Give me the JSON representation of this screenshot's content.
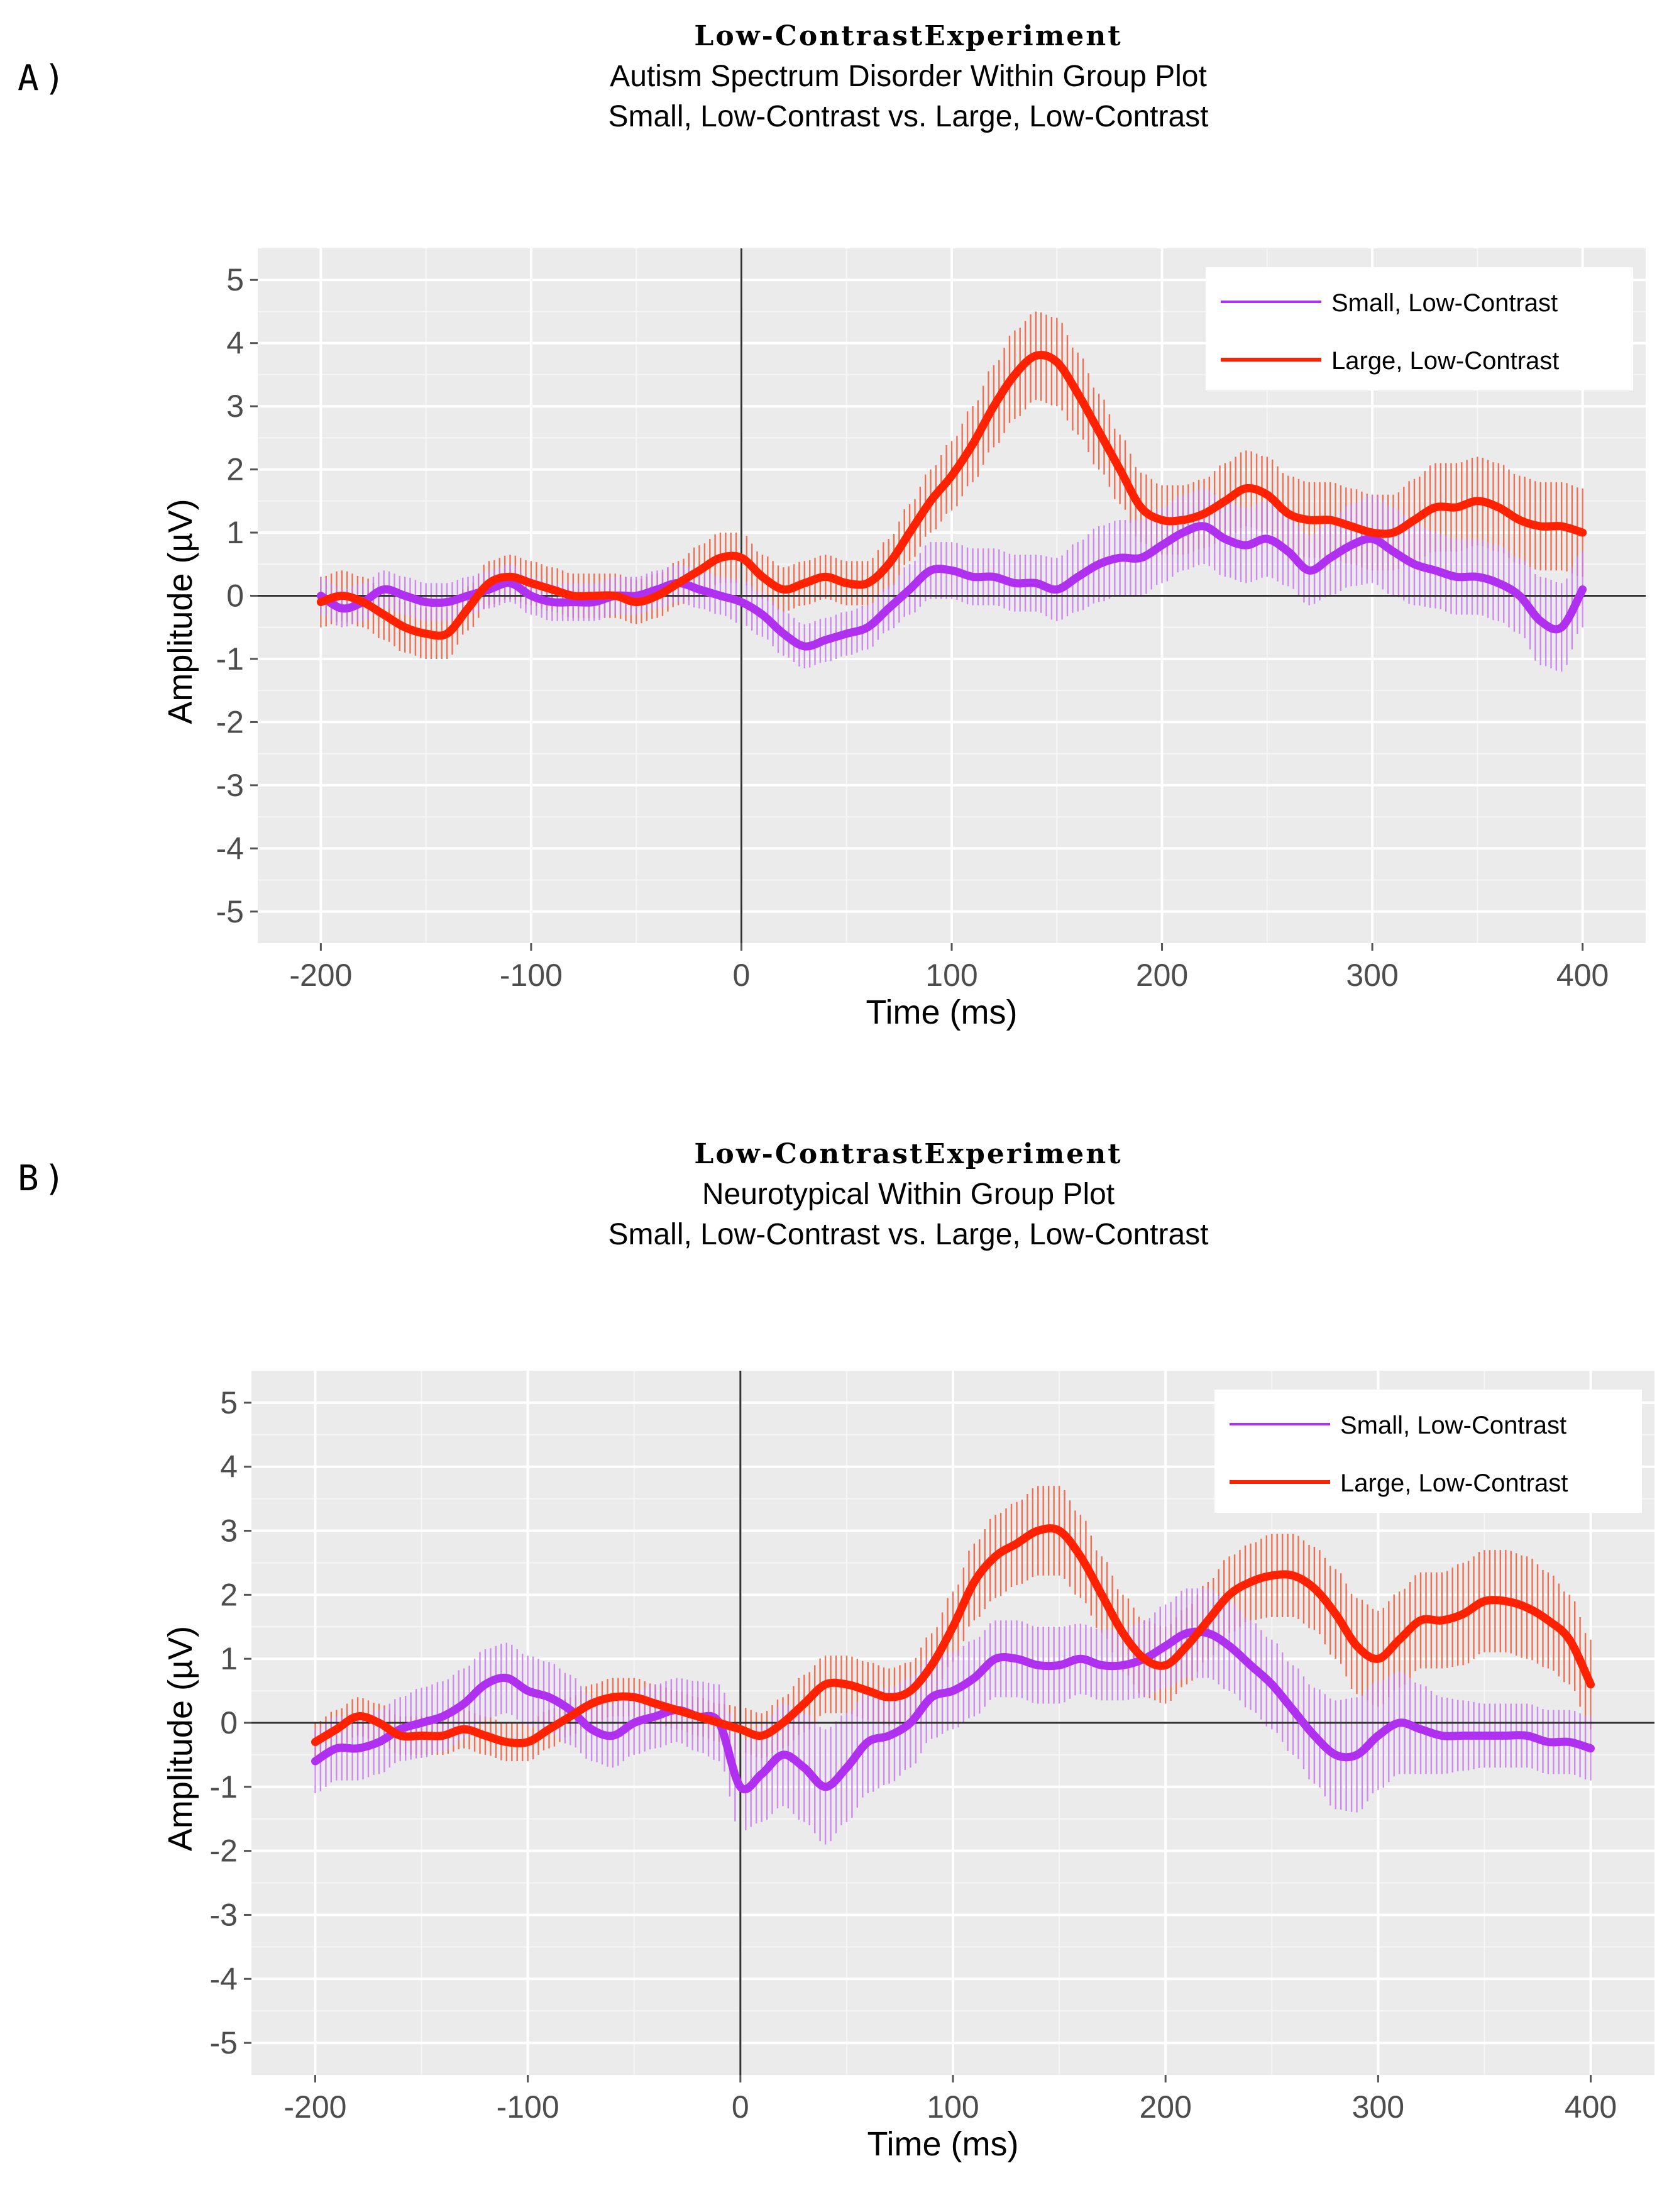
{
  "panels": [
    {
      "label": "A)",
      "title": "Low-ContrastExperiment",
      "subtitle1": "Autism Spectrum Disorder Within Group Plot",
      "subtitle2": "Small, Low-Contrast vs. Large, Low-Contrast"
    },
    {
      "label": "B)",
      "title": "Low-ContrastExperiment",
      "subtitle1": "Neurotypical Within Group Plot",
      "subtitle2": "Small, Low-Contrast vs. Large, Low-Contrast"
    }
  ],
  "colors": {
    "small": "#b030f0",
    "small_band": "#c878f0",
    "large": "#ff2200",
    "large_band": "#f05a38",
    "panel_bg": "#ebebeb",
    "grid": "#ffffff"
  },
  "chart_data": [
    {
      "type": "line",
      "title": "Low-ContrastExperiment",
      "subtitle": "Autism Spectrum Disorder Within Group Plot / Small, Low-Contrast vs. Large, Low-Contrast",
      "xlabel": "Time (ms)",
      "ylabel": "Amplitude (µV)",
      "xlim": [
        -230,
        430
      ],
      "ylim": [
        -5.5,
        5.5
      ],
      "xticks": [
        -200,
        -100,
        0,
        100,
        200,
        300,
        400
      ],
      "yticks": [
        5,
        4,
        3,
        2,
        1,
        0,
        -1,
        -2,
        -3,
        -4,
        -5
      ],
      "legend_position": "top-right",
      "series": [
        {
          "name": "Small, Low-Contrast",
          "x": [
            -200,
            -190,
            -180,
            -170,
            -160,
            -150,
            -140,
            -130,
            -120,
            -110,
            -100,
            -90,
            -80,
            -70,
            -60,
            -50,
            -40,
            -30,
            -20,
            -10,
            0,
            10,
            20,
            30,
            40,
            50,
            60,
            70,
            80,
            90,
            100,
            110,
            120,
            130,
            140,
            150,
            160,
            170,
            180,
            190,
            200,
            210,
            220,
            230,
            240,
            250,
            260,
            270,
            280,
            290,
            300,
            310,
            320,
            330,
            340,
            350,
            360,
            370,
            380,
            390,
            400
          ],
          "values": [
            0.0,
            -0.2,
            -0.1,
            0.1,
            0.0,
            -0.1,
            -0.1,
            0.0,
            0.1,
            0.2,
            0.0,
            -0.1,
            -0.1,
            -0.1,
            0.0,
            0.0,
            0.1,
            0.2,
            0.1,
            0.0,
            -0.1,
            -0.3,
            -0.6,
            -0.8,
            -0.7,
            -0.6,
            -0.5,
            -0.2,
            0.1,
            0.4,
            0.4,
            0.3,
            0.3,
            0.2,
            0.2,
            0.1,
            0.3,
            0.5,
            0.6,
            0.6,
            0.8,
            1.0,
            1.1,
            0.9,
            0.8,
            0.9,
            0.7,
            0.4,
            0.6,
            0.8,
            0.9,
            0.7,
            0.5,
            0.4,
            0.3,
            0.3,
            0.2,
            0.0,
            -0.4,
            -0.5,
            0.1
          ],
          "error": [
            0.3,
            0.3,
            0.3,
            0.3,
            0.3,
            0.3,
            0.3,
            0.3,
            0.3,
            0.3,
            0.3,
            0.3,
            0.3,
            0.3,
            0.3,
            0.3,
            0.3,
            0.3,
            0.3,
            0.3,
            0.35,
            0.35,
            0.35,
            0.35,
            0.35,
            0.35,
            0.35,
            0.35,
            0.4,
            0.45,
            0.45,
            0.45,
            0.45,
            0.45,
            0.45,
            0.5,
            0.55,
            0.6,
            0.6,
            0.6,
            0.6,
            0.6,
            0.6,
            0.6,
            0.6,
            0.6,
            0.55,
            0.55,
            0.6,
            0.65,
            0.7,
            0.7,
            0.65,
            0.6,
            0.6,
            0.6,
            0.6,
            0.6,
            0.7,
            0.7,
            0.6
          ]
        },
        {
          "name": "Large, Low-Contrast",
          "x": [
            -200,
            -190,
            -180,
            -170,
            -160,
            -150,
            -140,
            -130,
            -120,
            -110,
            -100,
            -90,
            -80,
            -70,
            -60,
            -50,
            -40,
            -30,
            -20,
            -10,
            0,
            10,
            20,
            30,
            40,
            50,
            60,
            70,
            80,
            90,
            100,
            110,
            120,
            130,
            140,
            150,
            160,
            170,
            180,
            190,
            200,
            210,
            220,
            230,
            240,
            250,
            260,
            270,
            280,
            290,
            300,
            310,
            320,
            330,
            340,
            350,
            360,
            370,
            380,
            390,
            400
          ],
          "values": [
            -0.1,
            0.0,
            -0.1,
            -0.3,
            -0.5,
            -0.6,
            -0.6,
            -0.2,
            0.2,
            0.3,
            0.2,
            0.1,
            0.0,
            0.0,
            0.0,
            -0.1,
            0.0,
            0.2,
            0.4,
            0.6,
            0.6,
            0.3,
            0.1,
            0.2,
            0.3,
            0.2,
            0.2,
            0.5,
            1.0,
            1.5,
            1.9,
            2.4,
            3.0,
            3.5,
            3.8,
            3.7,
            3.2,
            2.6,
            2.0,
            1.4,
            1.2,
            1.2,
            1.3,
            1.5,
            1.7,
            1.6,
            1.3,
            1.2,
            1.2,
            1.1,
            1.0,
            1.0,
            1.2,
            1.4,
            1.4,
            1.5,
            1.4,
            1.2,
            1.1,
            1.1,
            1.0
          ],
          "error": [
            0.4,
            0.4,
            0.4,
            0.4,
            0.4,
            0.4,
            0.4,
            0.35,
            0.35,
            0.35,
            0.35,
            0.35,
            0.35,
            0.35,
            0.35,
            0.35,
            0.35,
            0.35,
            0.4,
            0.4,
            0.4,
            0.35,
            0.35,
            0.35,
            0.35,
            0.35,
            0.35,
            0.4,
            0.45,
            0.5,
            0.55,
            0.6,
            0.65,
            0.7,
            0.7,
            0.7,
            0.65,
            0.6,
            0.55,
            0.55,
            0.55,
            0.55,
            0.55,
            0.6,
            0.6,
            0.6,
            0.6,
            0.6,
            0.6,
            0.6,
            0.6,
            0.6,
            0.65,
            0.7,
            0.7,
            0.7,
            0.7,
            0.7,
            0.7,
            0.7,
            0.7
          ]
        }
      ]
    },
    {
      "type": "line",
      "title": "Low-ContrastExperiment",
      "subtitle": "Neurotypical Within Group Plot / Small, Low-Contrast vs. Large, Low-Contrast",
      "xlabel": "Time (ms)",
      "ylabel": "Amplitude (µV)",
      "xlim": [
        -230,
        430
      ],
      "ylim": [
        -5.5,
        5.5
      ],
      "xticks": [
        -200,
        -100,
        0,
        100,
        200,
        300,
        400
      ],
      "yticks": [
        5,
        4,
        3,
        2,
        1,
        0,
        -1,
        -2,
        -3,
        -4,
        -5
      ],
      "legend_position": "top-right",
      "series": [
        {
          "name": "Small, Low-Contrast",
          "x": [
            -200,
            -190,
            -180,
            -170,
            -160,
            -150,
            -140,
            -130,
            -120,
            -110,
            -100,
            -90,
            -80,
            -70,
            -60,
            -50,
            -40,
            -30,
            -20,
            -10,
            0,
            10,
            20,
            30,
            40,
            50,
            60,
            70,
            80,
            90,
            100,
            110,
            120,
            130,
            140,
            150,
            160,
            170,
            180,
            190,
            200,
            210,
            220,
            230,
            240,
            250,
            260,
            270,
            280,
            290,
            300,
            310,
            320,
            330,
            340,
            350,
            360,
            370,
            380,
            390,
            400
          ],
          "values": [
            -0.6,
            -0.4,
            -0.4,
            -0.3,
            -0.1,
            0.0,
            0.1,
            0.3,
            0.6,
            0.7,
            0.5,
            0.4,
            0.2,
            -0.1,
            -0.2,
            0.0,
            0.1,
            0.2,
            0.1,
            0.0,
            -1.0,
            -0.8,
            -0.5,
            -0.7,
            -1.0,
            -0.7,
            -0.3,
            -0.2,
            0.0,
            0.4,
            0.5,
            0.7,
            1.0,
            1.0,
            0.9,
            0.9,
            1.0,
            0.9,
            0.9,
            1.0,
            1.2,
            1.4,
            1.4,
            1.2,
            0.9,
            0.6,
            0.2,
            -0.2,
            -0.5,
            -0.5,
            -0.2,
            0.0,
            -0.1,
            -0.2,
            -0.2,
            -0.2,
            -0.2,
            -0.2,
            -0.3,
            -0.3,
            -0.4
          ],
          "error": [
            0.5,
            0.5,
            0.5,
            0.5,
            0.5,
            0.55,
            0.55,
            0.55,
            0.55,
            0.55,
            0.55,
            0.55,
            0.55,
            0.5,
            0.5,
            0.5,
            0.5,
            0.5,
            0.55,
            0.6,
            0.7,
            0.75,
            0.8,
            0.85,
            0.9,
            0.85,
            0.8,
            0.75,
            0.7,
            0.65,
            0.6,
            0.6,
            0.6,
            0.6,
            0.6,
            0.6,
            0.55,
            0.55,
            0.55,
            0.6,
            0.65,
            0.7,
            0.7,
            0.7,
            0.7,
            0.7,
            0.7,
            0.75,
            0.85,
            0.9,
            0.85,
            0.8,
            0.7,
            0.6,
            0.55,
            0.5,
            0.5,
            0.5,
            0.5,
            0.5,
            0.5
          ]
        },
        {
          "name": "Large, Low-Contrast",
          "x": [
            -200,
            -190,
            -180,
            -170,
            -160,
            -150,
            -140,
            -130,
            -120,
            -110,
            -100,
            -90,
            -80,
            -70,
            -60,
            -50,
            -40,
            -30,
            -20,
            -10,
            0,
            10,
            20,
            30,
            40,
            50,
            60,
            70,
            80,
            90,
            100,
            110,
            120,
            130,
            140,
            150,
            160,
            170,
            180,
            190,
            200,
            210,
            220,
            230,
            240,
            250,
            260,
            270,
            280,
            290,
            300,
            310,
            320,
            330,
            340,
            350,
            360,
            370,
            380,
            390,
            400
          ],
          "values": [
            -0.3,
            -0.1,
            0.1,
            0.0,
            -0.2,
            -0.2,
            -0.2,
            -0.1,
            -0.2,
            -0.3,
            -0.3,
            -0.1,
            0.1,
            0.3,
            0.4,
            0.4,
            0.3,
            0.2,
            0.1,
            0.0,
            -0.1,
            -0.2,
            0.0,
            0.3,
            0.6,
            0.6,
            0.5,
            0.4,
            0.5,
            0.9,
            1.5,
            2.2,
            2.6,
            2.8,
            3.0,
            3.0,
            2.6,
            2.0,
            1.4,
            1.0,
            0.9,
            1.2,
            1.6,
            2.0,
            2.2,
            2.3,
            2.3,
            2.1,
            1.7,
            1.2,
            1.0,
            1.3,
            1.6,
            1.6,
            1.7,
            1.9,
            1.9,
            1.8,
            1.6,
            1.3,
            0.6
          ],
          "error": [
            0.3,
            0.3,
            0.3,
            0.3,
            0.3,
            0.3,
            0.3,
            0.3,
            0.3,
            0.3,
            0.3,
            0.3,
            0.3,
            0.3,
            0.3,
            0.3,
            0.3,
            0.3,
            0.3,
            0.3,
            0.35,
            0.35,
            0.4,
            0.45,
            0.45,
            0.45,
            0.45,
            0.45,
            0.45,
            0.5,
            0.55,
            0.6,
            0.65,
            0.65,
            0.7,
            0.7,
            0.65,
            0.6,
            0.6,
            0.6,
            0.6,
            0.6,
            0.6,
            0.6,
            0.6,
            0.65,
            0.65,
            0.65,
            0.7,
            0.75,
            0.75,
            0.75,
            0.75,
            0.75,
            0.8,
            0.8,
            0.8,
            0.8,
            0.75,
            0.7,
            0.7
          ]
        }
      ]
    }
  ]
}
